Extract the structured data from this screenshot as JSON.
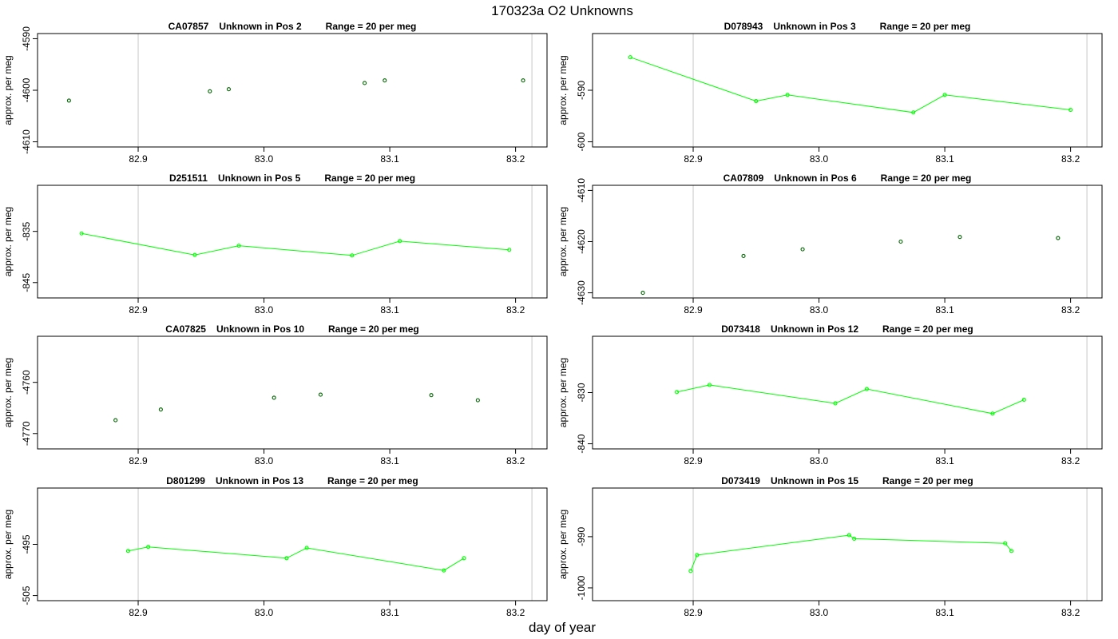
{
  "figure": {
    "title": "170323a  O2 Unknowns",
    "xlabel": "day of year",
    "ylabel": "approx. per meg",
    "colors": {
      "line": "#00ff00",
      "point_dark": "#006400",
      "refline": "#c8c8c8",
      "axis": "#000000"
    }
  },
  "chart_data": [
    {
      "type": "scatter",
      "id": "CA07857",
      "subtitle": {
        "id": "CA07857",
        "desc": "Unknown in Pos 2",
        "range": "Range = 20 per meg"
      },
      "connected": false,
      "xlim": [
        82.82,
        83.225
      ],
      "ylim": [
        -4611,
        -4589
      ],
      "xticks": [
        "82.9",
        "83.0",
        "83.1",
        "83.2"
      ],
      "yticks": [
        "-4590",
        "-4600",
        "-4610"
      ],
      "vlines": [
        82.9,
        83.213
      ],
      "points": [
        [
          82.845,
          -4602
        ],
        [
          82.957,
          -4600.2
        ],
        [
          82.972,
          -4599.8
        ],
        [
          83.08,
          -4598.6
        ],
        [
          83.096,
          -4598.1
        ],
        [
          83.206,
          -4598.1
        ]
      ]
    },
    {
      "type": "line",
      "id": "D078943",
      "subtitle": {
        "id": "D078943",
        "desc": "Unknown in Pos 3",
        "range": "Range = 20 per meg"
      },
      "connected": true,
      "xlim": [
        82.82,
        83.225
      ],
      "ylim": [
        -601,
        -579
      ],
      "xticks": [
        "82.9",
        "83.0",
        "83.1",
        "83.2"
      ],
      "yticks": [
        "-590",
        "-600"
      ],
      "vlines": [
        82.9,
        83.213
      ],
      "points": [
        [
          82.85,
          -583.6
        ],
        [
          82.95,
          -592.1
        ],
        [
          82.975,
          -590.9
        ],
        [
          83.075,
          -594.3
        ],
        [
          83.1,
          -590.9
        ],
        [
          83.2,
          -593.8
        ]
      ]
    },
    {
      "type": "line",
      "id": "D251511",
      "subtitle": {
        "id": "D251511",
        "desc": "Unknown in Pos 5",
        "range": "Range = 20 per meg"
      },
      "connected": true,
      "xlim": [
        82.82,
        83.225
      ],
      "ylim": [
        -848,
        -826
      ],
      "xticks": [
        "82.9",
        "83.0",
        "83.1",
        "83.2"
      ],
      "yticks": [
        "-835",
        "-845"
      ],
      "vlines": [
        82.9,
        83.213
      ],
      "points": [
        [
          82.855,
          -835.4
        ],
        [
          82.945,
          -839.6
        ],
        [
          82.98,
          -837.8
        ],
        [
          83.07,
          -839.7
        ],
        [
          83.108,
          -836.9
        ],
        [
          83.195,
          -838.6
        ]
      ]
    },
    {
      "type": "scatter",
      "id": "CA07809",
      "subtitle": {
        "id": "CA07809",
        "desc": "Unknown in Pos 6",
        "range": "Range = 20 per meg"
      },
      "connected": false,
      "xlim": [
        82.82,
        83.225
      ],
      "ylim": [
        -4631,
        -4609
      ],
      "xticks": [
        "82.9",
        "83.0",
        "83.1",
        "83.2"
      ],
      "yticks": [
        "-4610",
        "-4620",
        "-4630"
      ],
      "vlines": [
        82.9,
        83.213
      ],
      "points": [
        [
          82.86,
          -4630
        ],
        [
          82.94,
          -4622.8
        ],
        [
          82.987,
          -4621.5
        ],
        [
          83.065,
          -4620
        ],
        [
          83.112,
          -4619.1
        ],
        [
          83.19,
          -4619.3
        ]
      ]
    },
    {
      "type": "scatter",
      "id": "CA07825",
      "subtitle": {
        "id": "CA07825",
        "desc": "Unknown in Pos 10",
        "range": "Range = 20 per meg"
      },
      "connected": false,
      "xlim": [
        82.82,
        83.225
      ],
      "ylim": [
        -4773,
        -4751
      ],
      "xticks": [
        "82.9",
        "83.0",
        "83.1",
        "83.2"
      ],
      "yticks": [
        "-4760",
        "-4770"
      ],
      "vlines": [
        82.9,
        83.213
      ],
      "points": [
        [
          82.882,
          -4767.4
        ],
        [
          82.918,
          -4765.3
        ],
        [
          83.008,
          -4763
        ],
        [
          83.045,
          -4762.4
        ],
        [
          83.133,
          -4762.5
        ],
        [
          83.17,
          -4763.5
        ]
      ]
    },
    {
      "type": "line",
      "id": "D073418",
      "subtitle": {
        "id": "D073418",
        "desc": "Unknown in Pos 12",
        "range": "Range = 20 per meg"
      },
      "connected": true,
      "xlim": [
        82.82,
        83.225
      ],
      "ylim": [
        -841,
        -819
      ],
      "xticks": [
        "82.9",
        "83.0",
        "83.1",
        "83.2"
      ],
      "yticks": [
        "-830",
        "-840"
      ],
      "vlines": [
        82.9,
        83.213
      ],
      "points": [
        [
          82.887,
          -829.9
        ],
        [
          82.913,
          -828.5
        ],
        [
          83.013,
          -832.1
        ],
        [
          83.038,
          -829.3
        ],
        [
          83.138,
          -834.1
        ],
        [
          83.163,
          -831.4
        ]
      ]
    },
    {
      "type": "line",
      "id": "D801299",
      "subtitle": {
        "id": "D801299",
        "desc": "Unknown in Pos 13",
        "range": "Range = 20 per meg"
      },
      "connected": true,
      "xlim": [
        82.82,
        83.225
      ],
      "ylim": [
        -506,
        -484
      ],
      "xticks": [
        "82.9",
        "83.0",
        "83.1",
        "83.2"
      ],
      "yticks": [
        "-495",
        "-505"
      ],
      "vlines": [
        82.9,
        83.213
      ],
      "points": [
        [
          82.892,
          -496.3
        ],
        [
          82.908,
          -495.5
        ],
        [
          83.018,
          -497.7
        ],
        [
          83.034,
          -495.7
        ],
        [
          83.143,
          -500.1
        ],
        [
          83.159,
          -497.7
        ]
      ]
    },
    {
      "type": "line",
      "id": "D073419",
      "subtitle": {
        "id": "D073419",
        "desc": "Unknown in Pos 15",
        "range": "Range = 20 per meg"
      },
      "connected": true,
      "xlim": [
        82.82,
        83.225
      ],
      "ylim": [
        -1002.5,
        -980.5
      ],
      "xticks": [
        "82.9",
        "83.0",
        "83.1",
        "83.2"
      ],
      "yticks": [
        "-990",
        "-1000"
      ],
      "vlines": [
        82.9,
        83.213
      ],
      "points": [
        [
          82.898,
          -996.7
        ],
        [
          82.903,
          -993.6
        ],
        [
          83.024,
          -989.7
        ],
        [
          83.028,
          -990.4
        ],
        [
          83.148,
          -991.3
        ],
        [
          83.153,
          -992.8
        ]
      ]
    }
  ]
}
